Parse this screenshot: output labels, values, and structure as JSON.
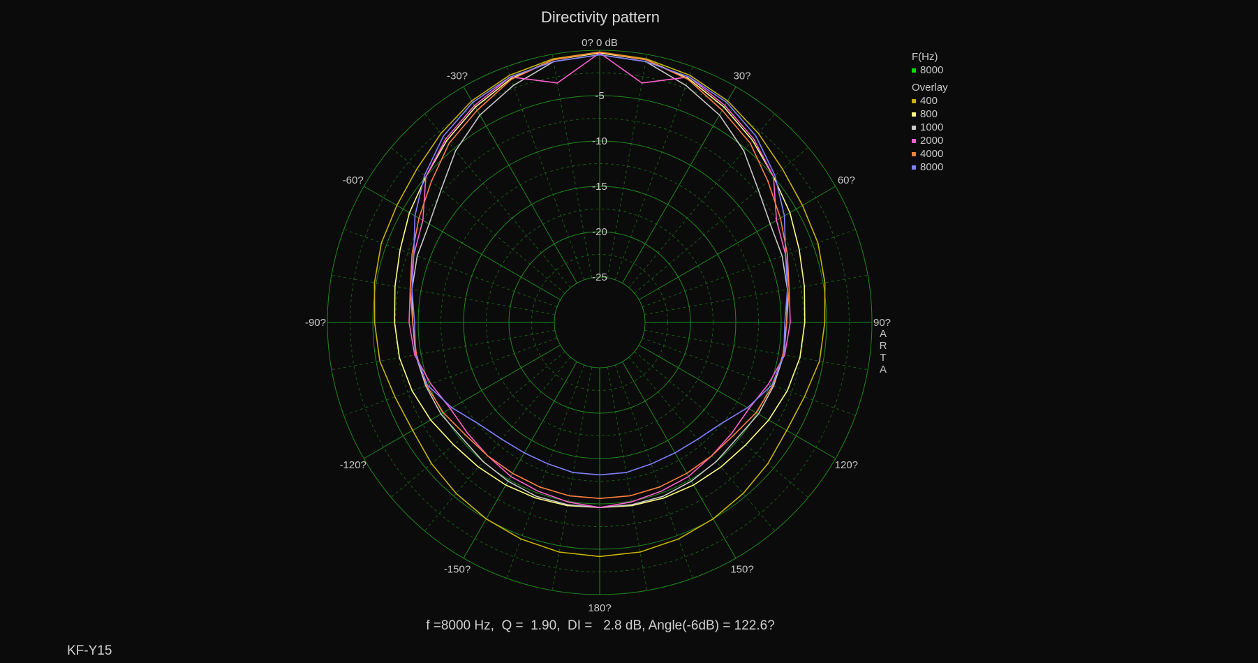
{
  "chart_data": {
    "type": "polar",
    "title": "Directivity pattern",
    "top_label": "0? 0 dB",
    "radial_range_db": [
      -30,
      0
    ],
    "radial_ticks": [
      -5,
      -10,
      -15,
      -20,
      -25
    ],
    "radial_tick_labels": [
      "-5",
      "-10",
      "-15",
      "-20",
      "-25"
    ],
    "angle_ticks": [
      {
        "deg": -30,
        "label": "-30?"
      },
      {
        "deg": 30,
        "label": "30?"
      },
      {
        "deg": -60,
        "label": "-60?"
      },
      {
        "deg": 60,
        "label": "60?"
      },
      {
        "deg": -90,
        "label": "-90?"
      },
      {
        "deg": 90,
        "label": "90?"
      },
      {
        "deg": -120,
        "label": "-120?"
      },
      {
        "deg": 120,
        "label": "120?"
      },
      {
        "deg": -150,
        "label": "-150?"
      },
      {
        "deg": 150,
        "label": "150?"
      },
      {
        "deg": 180,
        "label": "180?"
      }
    ],
    "grid": true,
    "colors": {
      "grid": "#1f8a1f",
      "grid_minor": "#175f17",
      "background": "#0b0b0b"
    },
    "angles": [
      0,
      10,
      20,
      30,
      40,
      50,
      60,
      70,
      80,
      90,
      100,
      110,
      120,
      130,
      140,
      150,
      160,
      170,
      180
    ],
    "series": [
      {
        "name": "400",
        "color": "#c8b400",
        "values": [
          -0.2,
          -0.5,
          -1.0,
          -1.8,
          -2.8,
          -3.7,
          -4.2,
          -4.4,
          -4.8,
          -5.2,
          -5.4,
          -6.0,
          -6.2,
          -5.8,
          -5.4,
          -5.0,
          -4.6,
          -4.3,
          -4.2
        ]
      },
      {
        "name": "800",
        "color": "#ffff80",
        "values": [
          -0.3,
          -0.6,
          -1.4,
          -2.6,
          -3.8,
          -5.0,
          -5.8,
          -6.6,
          -7.1,
          -7.4,
          -7.6,
          -8.0,
          -8.5,
          -9.0,
          -9.2,
          -9.3,
          -9.4,
          -9.5,
          -9.6
        ]
      },
      {
        "name": "1000",
        "color": "#c8c8c8",
        "values": [
          -0.5,
          -0.8,
          -2.2,
          -3.6,
          -5.3,
          -7.2,
          -8.3,
          -8.6,
          -9.0,
          -9.4,
          -9.4,
          -9.6,
          -9.8,
          -10.2,
          -10.0,
          -9.8,
          -9.6,
          -9.6,
          -9.6
        ]
      },
      {
        "name": "2000",
        "color": "#ff5fd0",
        "values": [
          -0.3,
          -3.2,
          -1.2,
          -2.4,
          -3.6,
          -5.0,
          -7.5,
          -8.2,
          -8.8,
          -9.0,
          -9.3,
          -10.2,
          -11.0,
          -11.0,
          -10.8,
          -10.4,
          -10.2,
          -9.9,
          -9.6
        ]
      },
      {
        "name": "4000",
        "color": "#ff7f3f",
        "values": [
          -0.2,
          -0.6,
          -1.5,
          -3.0,
          -4.2,
          -5.8,
          -7.0,
          -8.0,
          -8.8,
          -9.4,
          -9.5,
          -9.7,
          -10.1,
          -10.7,
          -10.8,
          -10.8,
          -10.7,
          -10.6,
          -10.6
        ]
      },
      {
        "name": "8000",
        "color": "#8080ff",
        "values": [
          -0.5,
          -0.8,
          -1.2,
          -2.0,
          -3.2,
          -4.8,
          -6.5,
          -8.2,
          -9.0,
          -9.6,
          -9.4,
          -9.8,
          -11.2,
          -12.6,
          -13.2,
          -13.4,
          -13.4,
          -13.2,
          -13.2
        ]
      }
    ],
    "legend": {
      "header": "F(Hz)",
      "current": [
        {
          "label": "8000",
          "color": "#00e000"
        }
      ],
      "overlay_header": "Overlay",
      "overlay": [
        {
          "label": "400",
          "color": "#c8b400"
        },
        {
          "label": "800",
          "color": "#ffff80"
        },
        {
          "label": "1000",
          "color": "#c8c8c8"
        },
        {
          "label": "2000",
          "color": "#ff5fd0"
        },
        {
          "label": "4000",
          "color": "#ff7f3f"
        },
        {
          "label": "8000",
          "color": "#8080ff"
        }
      ],
      "placement": "top-right"
    }
  },
  "stats_line": "f =8000 Hz,  Q =  1.90,  DI =   2.8 dB, Angle(-6dB) = 122.6?",
  "watermark_letters": [
    "A",
    "R",
    "T",
    "A"
  ],
  "model": "KF-Y15"
}
